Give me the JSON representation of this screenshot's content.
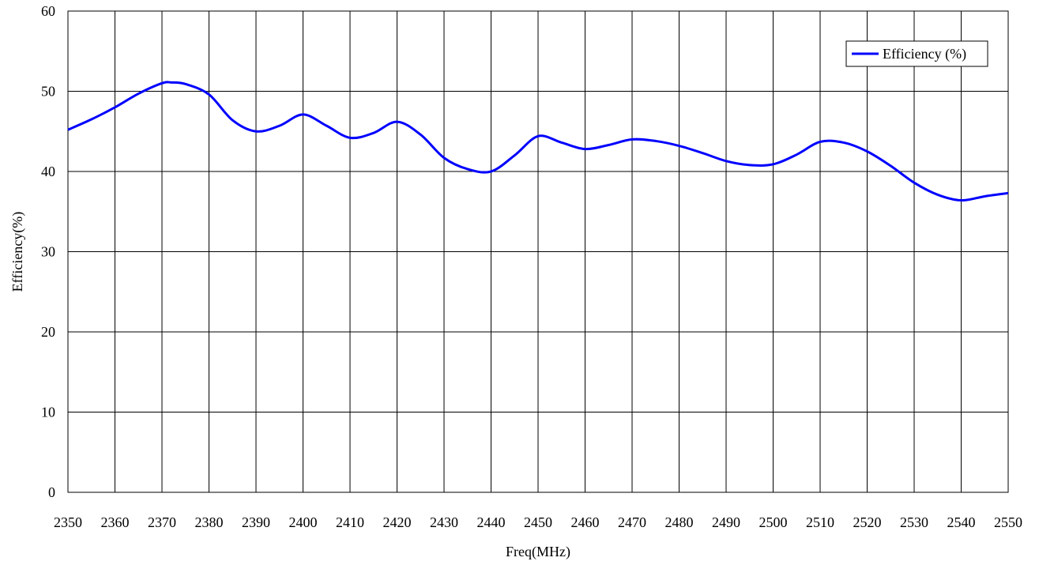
{
  "chart_data": {
    "type": "line",
    "title": "",
    "xlabel": "Freq(MHz)",
    "ylabel": "Efficiency(%)",
    "xlim": [
      2350,
      2550
    ],
    "ylim": [
      0,
      60
    ],
    "xticks": [
      2350,
      2360,
      2370,
      2380,
      2390,
      2400,
      2410,
      2420,
      2430,
      2440,
      2450,
      2460,
      2470,
      2480,
      2490,
      2500,
      2510,
      2520,
      2530,
      2540,
      2550
    ],
    "yticks": [
      0,
      10,
      20,
      30,
      40,
      50,
      60
    ],
    "grid": true,
    "legend_position": "top-right",
    "series": [
      {
        "name": "Efficiency (%)",
        "color": "#0000ff",
        "x": [
          2350,
          2355,
          2360,
          2365,
          2370,
          2372,
          2375,
          2380,
          2385,
          2390,
          2395,
          2400,
          2405,
          2410,
          2415,
          2420,
          2425,
          2430,
          2435,
          2440,
          2445,
          2450,
          2455,
          2460,
          2465,
          2470,
          2475,
          2480,
          2485,
          2490,
          2495,
          2500,
          2505,
          2510,
          2515,
          2520,
          2525,
          2530,
          2535,
          2540,
          2545,
          2550
        ],
        "y": [
          45.2,
          46.5,
          48.0,
          49.7,
          51.0,
          51.1,
          50.9,
          49.6,
          46.4,
          45.0,
          45.7,
          47.1,
          45.7,
          44.2,
          44.8,
          46.2,
          44.6,
          41.7,
          40.3,
          40.0,
          42.0,
          44.4,
          43.6,
          42.8,
          43.3,
          44.0,
          43.8,
          43.2,
          42.3,
          41.3,
          40.8,
          40.9,
          42.1,
          43.7,
          43.6,
          42.5,
          40.7,
          38.6,
          37.1,
          36.4,
          36.9,
          37.3
        ]
      }
    ]
  }
}
